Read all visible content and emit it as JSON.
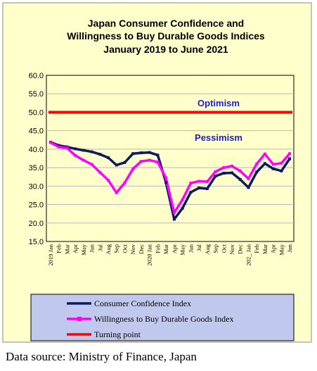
{
  "source_note": "Data source: Ministry of Finance, Japan",
  "chart_data": {
    "type": "line",
    "title": [
      "Japan Consumer Confidence and",
      "Willingness to Buy Durable Goods Indices",
      "January 2019 to June 2021"
    ],
    "ylim": [
      15,
      60
    ],
    "y_ticks": [
      "60.0",
      "55.0",
      "50.0",
      "45.0",
      "40.0",
      "35.0",
      "30.0",
      "25.0",
      "20.0",
      "15.0"
    ],
    "grid": "horizontal",
    "legend_position": "bottom",
    "categories": [
      "2019 Jan",
      "Feb",
      "Mar",
      "Apr",
      "May",
      "Jun",
      "Jul",
      "Aug",
      "Sep",
      "Oct",
      "Nov",
      "Dec",
      "2020 Jan",
      "Feb",
      "Mar",
      "Apr",
      "May",
      "Jun",
      "Jul",
      "Aug",
      "Sep",
      "Oct",
      "Nov",
      "Dec",
      "2021 Jan",
      "Feb",
      "Mar",
      "Apr",
      "May",
      "Jun"
    ],
    "x_tick_labels": [
      "2019 Jan",
      "Feb",
      "Mar",
      "Apr",
      "May",
      "Jun",
      "Jul",
      "Aug",
      "Sep",
      "Oct",
      "Nov",
      "Dec",
      "2020 Jan",
      "Feb",
      "Mar",
      "Apr",
      "May",
      "Jun",
      "Jul",
      "Aug",
      "Sep",
      "Oct",
      "Nov",
      "Dec",
      "202_ Jan",
      "Feb",
      "Mar",
      "Apr",
      "May",
      "Jun"
    ],
    "series": [
      {
        "name": "Consumer Confidence Index",
        "color": "#0d1a5e",
        "values": [
          41.9,
          41.0,
          40.6,
          40.1,
          39.7,
          39.3,
          38.6,
          37.7,
          35.7,
          36.4,
          38.8,
          39.0,
          39.1,
          38.4,
          31.0,
          21.0,
          24.0,
          28.3,
          29.5,
          29.3,
          32.7,
          33.5,
          33.6,
          31.8,
          29.6,
          33.8,
          36.1,
          34.7,
          34.1,
          37.4
        ]
      },
      {
        "name": "Willingness to Buy Durable Goods Index",
        "color": "#ff00ff",
        "values": [
          41.8,
          40.6,
          40.3,
          38.3,
          37.0,
          35.9,
          33.7,
          31.6,
          28.2,
          30.9,
          34.7,
          36.7,
          37.0,
          36.5,
          32.2,
          22.8,
          26.3,
          30.8,
          31.3,
          31.2,
          33.9,
          35.0,
          35.4,
          34.1,
          32.0,
          36.0,
          38.7,
          35.9,
          36.2,
          38.8
        ]
      },
      {
        "name": "Turning point",
        "color": "#ff0000",
        "constant": 50.0
      }
    ],
    "annotations": [
      "Optimism",
      "Pessimism"
    ]
  }
}
